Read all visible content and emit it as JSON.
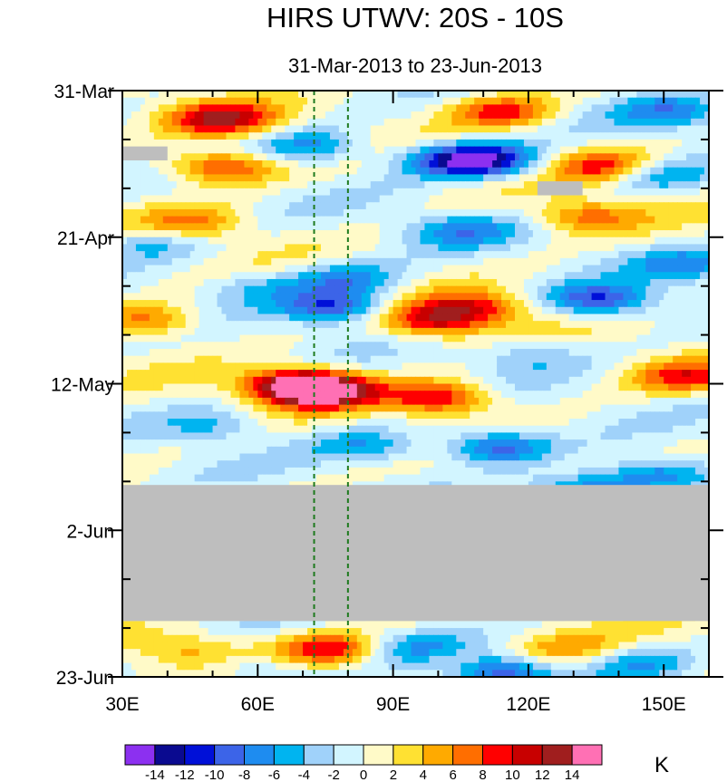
{
  "chart_data": {
    "type": "heatmap",
    "title": "HIRS UTWV: 20S - 10S",
    "subtitle": "31-Mar-2013 to 23-Jun-2013",
    "x_axis": {
      "range": [
        30,
        160
      ],
      "ticks": [
        30,
        60,
        90,
        120,
        150
      ],
      "tick_labels": [
        "30E",
        "60E",
        "90E",
        "120E",
        "150E"
      ]
    },
    "y_axis": {
      "range_days": [
        0,
        84
      ],
      "ticks_days": [
        0,
        21,
        42,
        63,
        84
      ],
      "tick_labels": [
        "31-Mar",
        "21-Apr",
        "12-May",
        "2-Jun",
        "23-Jun"
      ],
      "reversed": true
    },
    "reference_lines_lon": [
      72.5,
      80
    ],
    "missing_data": [
      {
        "lon": [
          30,
          160
        ],
        "days": [
          56.5,
          76
        ]
      },
      {
        "lon": [
          30,
          40
        ],
        "days": [
          8,
          10
        ]
      },
      {
        "lon": [
          122,
          132
        ],
        "days": [
          13,
          15
        ]
      }
    ],
    "colorbar": {
      "unit": "K",
      "levels": [
        -14,
        -12,
        -10,
        -8,
        -6,
        -4,
        -2,
        0,
        2,
        4,
        6,
        8,
        10,
        12,
        14
      ],
      "labels": [
        "-14",
        "-12",
        "-10",
        "-8",
        "-6",
        "-4",
        "-2",
        "0",
        "2",
        "4",
        "6",
        "8",
        "10",
        "12",
        "14"
      ],
      "colors": [
        "#8c30f0",
        "#0a0a90",
        "#0010d8",
        "#3c64e8",
        "#1e8cf0",
        "#00b4f0",
        "#a0d2fa",
        "#d2f5ff",
        "#fffac8",
        "#ffe132",
        "#ffaa00",
        "#ff6e00",
        "#ff0000",
        "#c80000",
        "#a01e1e",
        "#ff70b4"
      ]
    },
    "anomaly_features": [
      {
        "lon": 52,
        "day": 4,
        "value": 11
      },
      {
        "lon": 52,
        "day": 11,
        "value": 10
      },
      {
        "lon": 138,
        "day": 11,
        "value": 10
      },
      {
        "lon": 114,
        "day": 3,
        "value": 9
      },
      {
        "lon": 133,
        "day": 18,
        "value": 7
      },
      {
        "lon": 99,
        "day": 33,
        "value": 10
      },
      {
        "lon": 108,
        "day": 31,
        "value": 8
      },
      {
        "lon": 68,
        "day": 42,
        "value": 11
      },
      {
        "lon": 74,
        "day": 43,
        "value": 15
      },
      {
        "lon": 100,
        "day": 44,
        "value": 11
      },
      {
        "lon": 46,
        "day": 19,
        "value": 6
      },
      {
        "lon": 36,
        "day": 33,
        "value": 7
      },
      {
        "lon": 155,
        "day": 41,
        "value": 8
      },
      {
        "lon": 76,
        "day": 80,
        "value": 10
      },
      {
        "lon": 105,
        "day": 82,
        "value": 6
      },
      {
        "lon": 45,
        "day": 80,
        "value": 5
      },
      {
        "lon": 128,
        "day": 80,
        "value": 5
      },
      {
        "lon": 111,
        "day": 10,
        "value": -11
      },
      {
        "lon": 102,
        "day": 10,
        "value": -8
      },
      {
        "lon": 136,
        "day": 30,
        "value": -10
      },
      {
        "lon": 113,
        "day": 51,
        "value": -10
      },
      {
        "lon": 132,
        "day": 57,
        "value": -8
      },
      {
        "lon": 148,
        "day": 55,
        "value": -8
      },
      {
        "lon": 72,
        "day": 8,
        "value": -7
      },
      {
        "lon": 80,
        "day": 27,
        "value": -7
      },
      {
        "lon": 77,
        "day": 31,
        "value": -10
      },
      {
        "lon": 152,
        "day": 3,
        "value": -7
      },
      {
        "lon": 155,
        "day": 25,
        "value": -6
      },
      {
        "lon": 147,
        "day": 12,
        "value": -7
      },
      {
        "lon": 105,
        "day": 20,
        "value": -6
      },
      {
        "lon": 36,
        "day": 22,
        "value": -5
      },
      {
        "lon": 50,
        "day": 48,
        "value": -5
      },
      {
        "lon": 84,
        "day": 51,
        "value": -6
      },
      {
        "lon": 60,
        "day": 28,
        "value": -4
      },
      {
        "lon": 120,
        "day": 38,
        "value": -4
      },
      {
        "lon": 112,
        "day": 83,
        "value": -12
      },
      {
        "lon": 95,
        "day": 80,
        "value": -6
      },
      {
        "lon": 145,
        "day": 82,
        "value": -5
      },
      {
        "lon": 60,
        "day": 83,
        "value": -4
      }
    ]
  }
}
